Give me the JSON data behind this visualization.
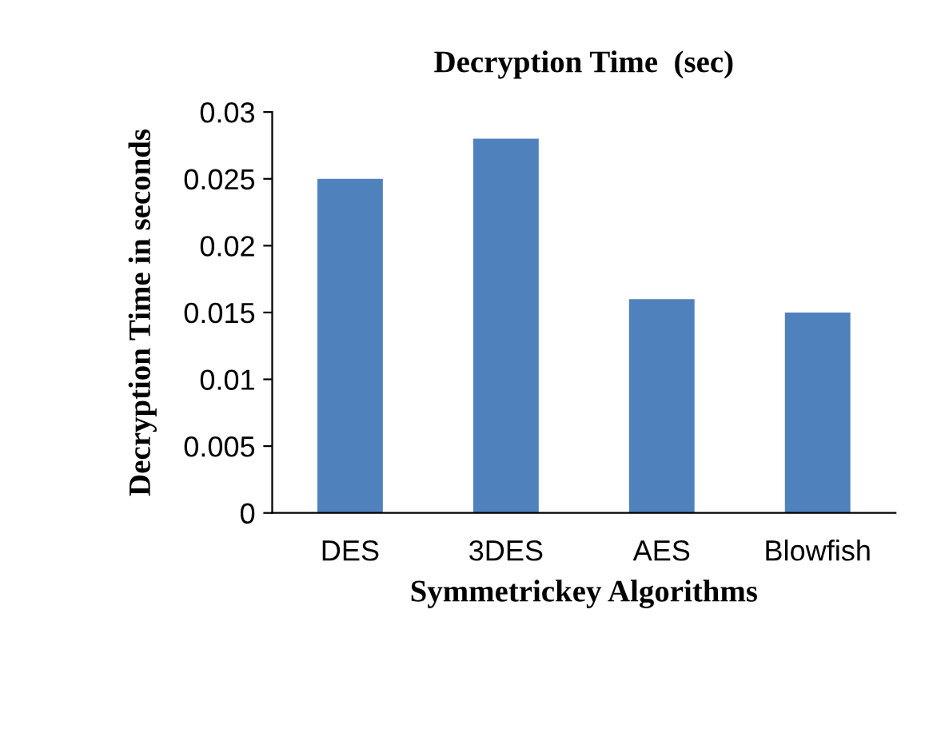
{
  "chart_data": {
    "type": "bar",
    "title": "Decryption Time  (sec)",
    "xlabel": "Symmetrickey Algorithms",
    "ylabel": "Decryption Time in seconds",
    "categories": [
      "DES",
      "3DES",
      "AES",
      "Blowfish"
    ],
    "values": [
      0.025,
      0.028,
      0.016,
      0.015
    ],
    "color": "#4f81bd",
    "ylim": [
      0,
      0.03
    ],
    "yticks": [
      0,
      0.005,
      0.01,
      0.015,
      0.02,
      0.025,
      0.03
    ],
    "grid": false,
    "legend": false
  }
}
